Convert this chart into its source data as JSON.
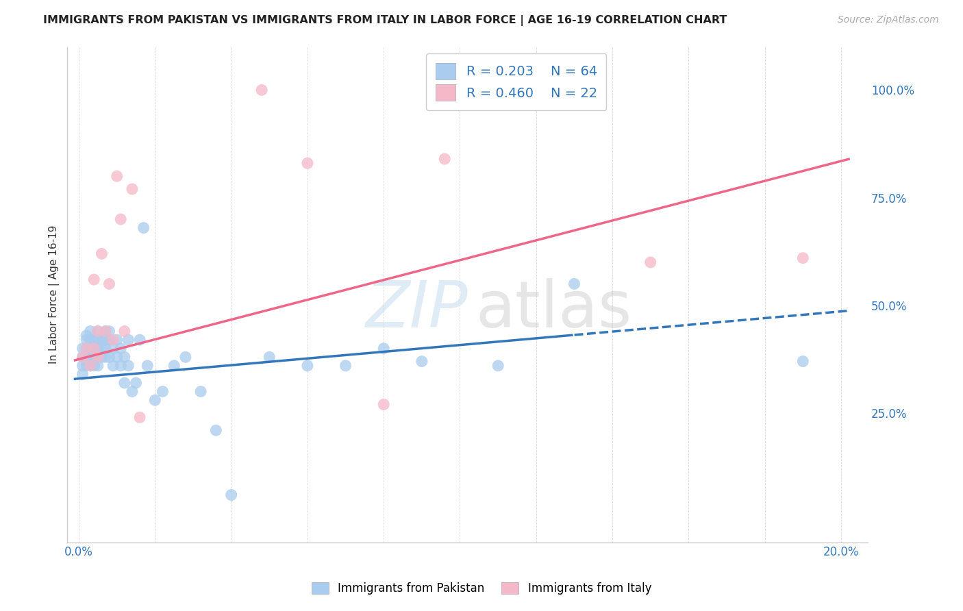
{
  "title": "IMMIGRANTS FROM PAKISTAN VS IMMIGRANTS FROM ITALY IN LABOR FORCE | AGE 16-19 CORRELATION CHART",
  "source": "Source: ZipAtlas.com",
  "ylabel": "In Labor Force | Age 16-19",
  "xlim": [
    -0.003,
    0.207
  ],
  "ylim": [
    -0.05,
    1.1
  ],
  "background_color": "#ffffff",
  "grid_color": "#cccccc",
  "pakistan_color": "#aaccee",
  "italy_color": "#f5b8c8",
  "pakistan_line_color": "#3377bb",
  "italy_line_color": "#ee6688",
  "pakistan_R": 0.203,
  "pakistan_N": 64,
  "italy_R": 0.46,
  "italy_N": 22,
  "legend_label1": "Immigrants from Pakistan",
  "legend_label2": "Immigrants from Italy",
  "pak_slope": 0.78,
  "pak_intercept": 0.33,
  "ita_slope": 2.3,
  "ita_intercept": 0.375,
  "pak_x": [
    0.001,
    0.001,
    0.001,
    0.001,
    0.002,
    0.002,
    0.002,
    0.002,
    0.002,
    0.002,
    0.003,
    0.003,
    0.003,
    0.003,
    0.003,
    0.004,
    0.004,
    0.004,
    0.004,
    0.005,
    0.005,
    0.005,
    0.005,
    0.005,
    0.006,
    0.006,
    0.006,
    0.007,
    0.007,
    0.007,
    0.007,
    0.008,
    0.008,
    0.008,
    0.009,
    0.009,
    0.01,
    0.01,
    0.011,
    0.011,
    0.012,
    0.012,
    0.013,
    0.013,
    0.014,
    0.015,
    0.016,
    0.017,
    0.018,
    0.02,
    0.022,
    0.025,
    0.028,
    0.032,
    0.036,
    0.04,
    0.05,
    0.06,
    0.07,
    0.08,
    0.09,
    0.11,
    0.13,
    0.19
  ],
  "pak_y": [
    0.38,
    0.4,
    0.36,
    0.34,
    0.42,
    0.4,
    0.38,
    0.43,
    0.37,
    0.36,
    0.42,
    0.4,
    0.38,
    0.36,
    0.44,
    0.42,
    0.4,
    0.38,
    0.36,
    0.42,
    0.4,
    0.38,
    0.44,
    0.36,
    0.42,
    0.4,
    0.38,
    0.44,
    0.42,
    0.4,
    0.38,
    0.44,
    0.42,
    0.38,
    0.4,
    0.36,
    0.38,
    0.42,
    0.4,
    0.36,
    0.32,
    0.38,
    0.36,
    0.42,
    0.3,
    0.32,
    0.42,
    0.68,
    0.36,
    0.28,
    0.3,
    0.36,
    0.38,
    0.3,
    0.21,
    0.06,
    0.38,
    0.36,
    0.36,
    0.4,
    0.37,
    0.36,
    0.55,
    0.37
  ],
  "ita_x": [
    0.001,
    0.002,
    0.003,
    0.004,
    0.004,
    0.005,
    0.005,
    0.006,
    0.007,
    0.008,
    0.009,
    0.01,
    0.011,
    0.012,
    0.014,
    0.016,
    0.048,
    0.06,
    0.08,
    0.096,
    0.15,
    0.19
  ],
  "ita_y": [
    0.38,
    0.4,
    0.36,
    0.56,
    0.4,
    0.44,
    0.38,
    0.62,
    0.44,
    0.55,
    0.42,
    0.8,
    0.7,
    0.44,
    0.77,
    0.24,
    1.0,
    0.83,
    0.27,
    0.84,
    0.6,
    0.61
  ]
}
